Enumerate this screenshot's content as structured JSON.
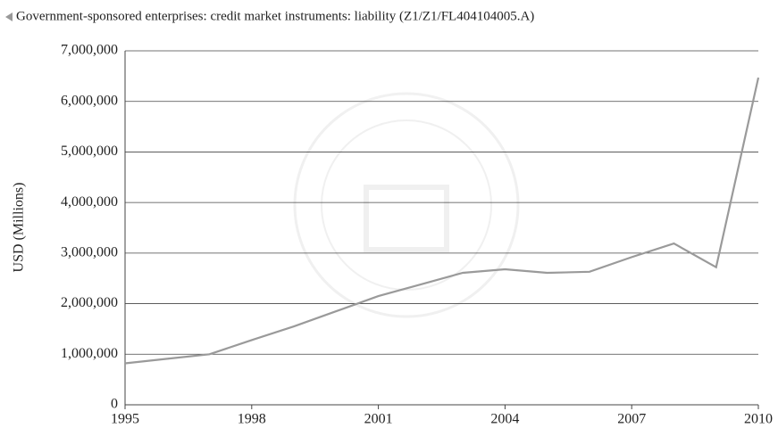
{
  "chart_data": {
    "type": "line",
    "title": "Government-sponsored enterprises: credit market instruments: liability (Z1/Z1/FL404104005.A)",
    "y_label": "USD (Millions)",
    "x": [
      1995,
      1996,
      1997,
      1998,
      1999,
      2000,
      2001,
      2002,
      2003,
      2004,
      2005,
      2006,
      2007,
      2008,
      2009,
      2010
    ],
    "series": [
      {
        "color": "#9a9a9a",
        "values": [
          820000,
          910000,
          1000000,
          1280000,
          1550000,
          1850000,
          2150000,
          2380000,
          2610000,
          2680000,
          2610000,
          2630000,
          2920000,
          3190000,
          2720000,
          6470000
        ]
      }
    ],
    "xlim": [
      1995,
      2010
    ],
    "xticks": [
      1995,
      1998,
      2001,
      2004,
      2007,
      2010
    ],
    "ylim": [
      0,
      7000000
    ],
    "yticks": [
      0,
      {
        "value": 1000000,
        "label": "1,000,000"
      },
      {
        "value": 2000000,
        "label": "2,000,000"
      },
      {
        "value": 3000000,
        "label": "3,000,000"
      },
      {
        "value": 4000000,
        "label": "4,000,000"
      },
      {
        "value": 5000000,
        "label": "5,000,000"
      },
      {
        "value": 6000000,
        "label": "6,000,000"
      },
      {
        "value": 7000000,
        "label": "7,000,000"
      }
    ],
    "grid": true
  }
}
